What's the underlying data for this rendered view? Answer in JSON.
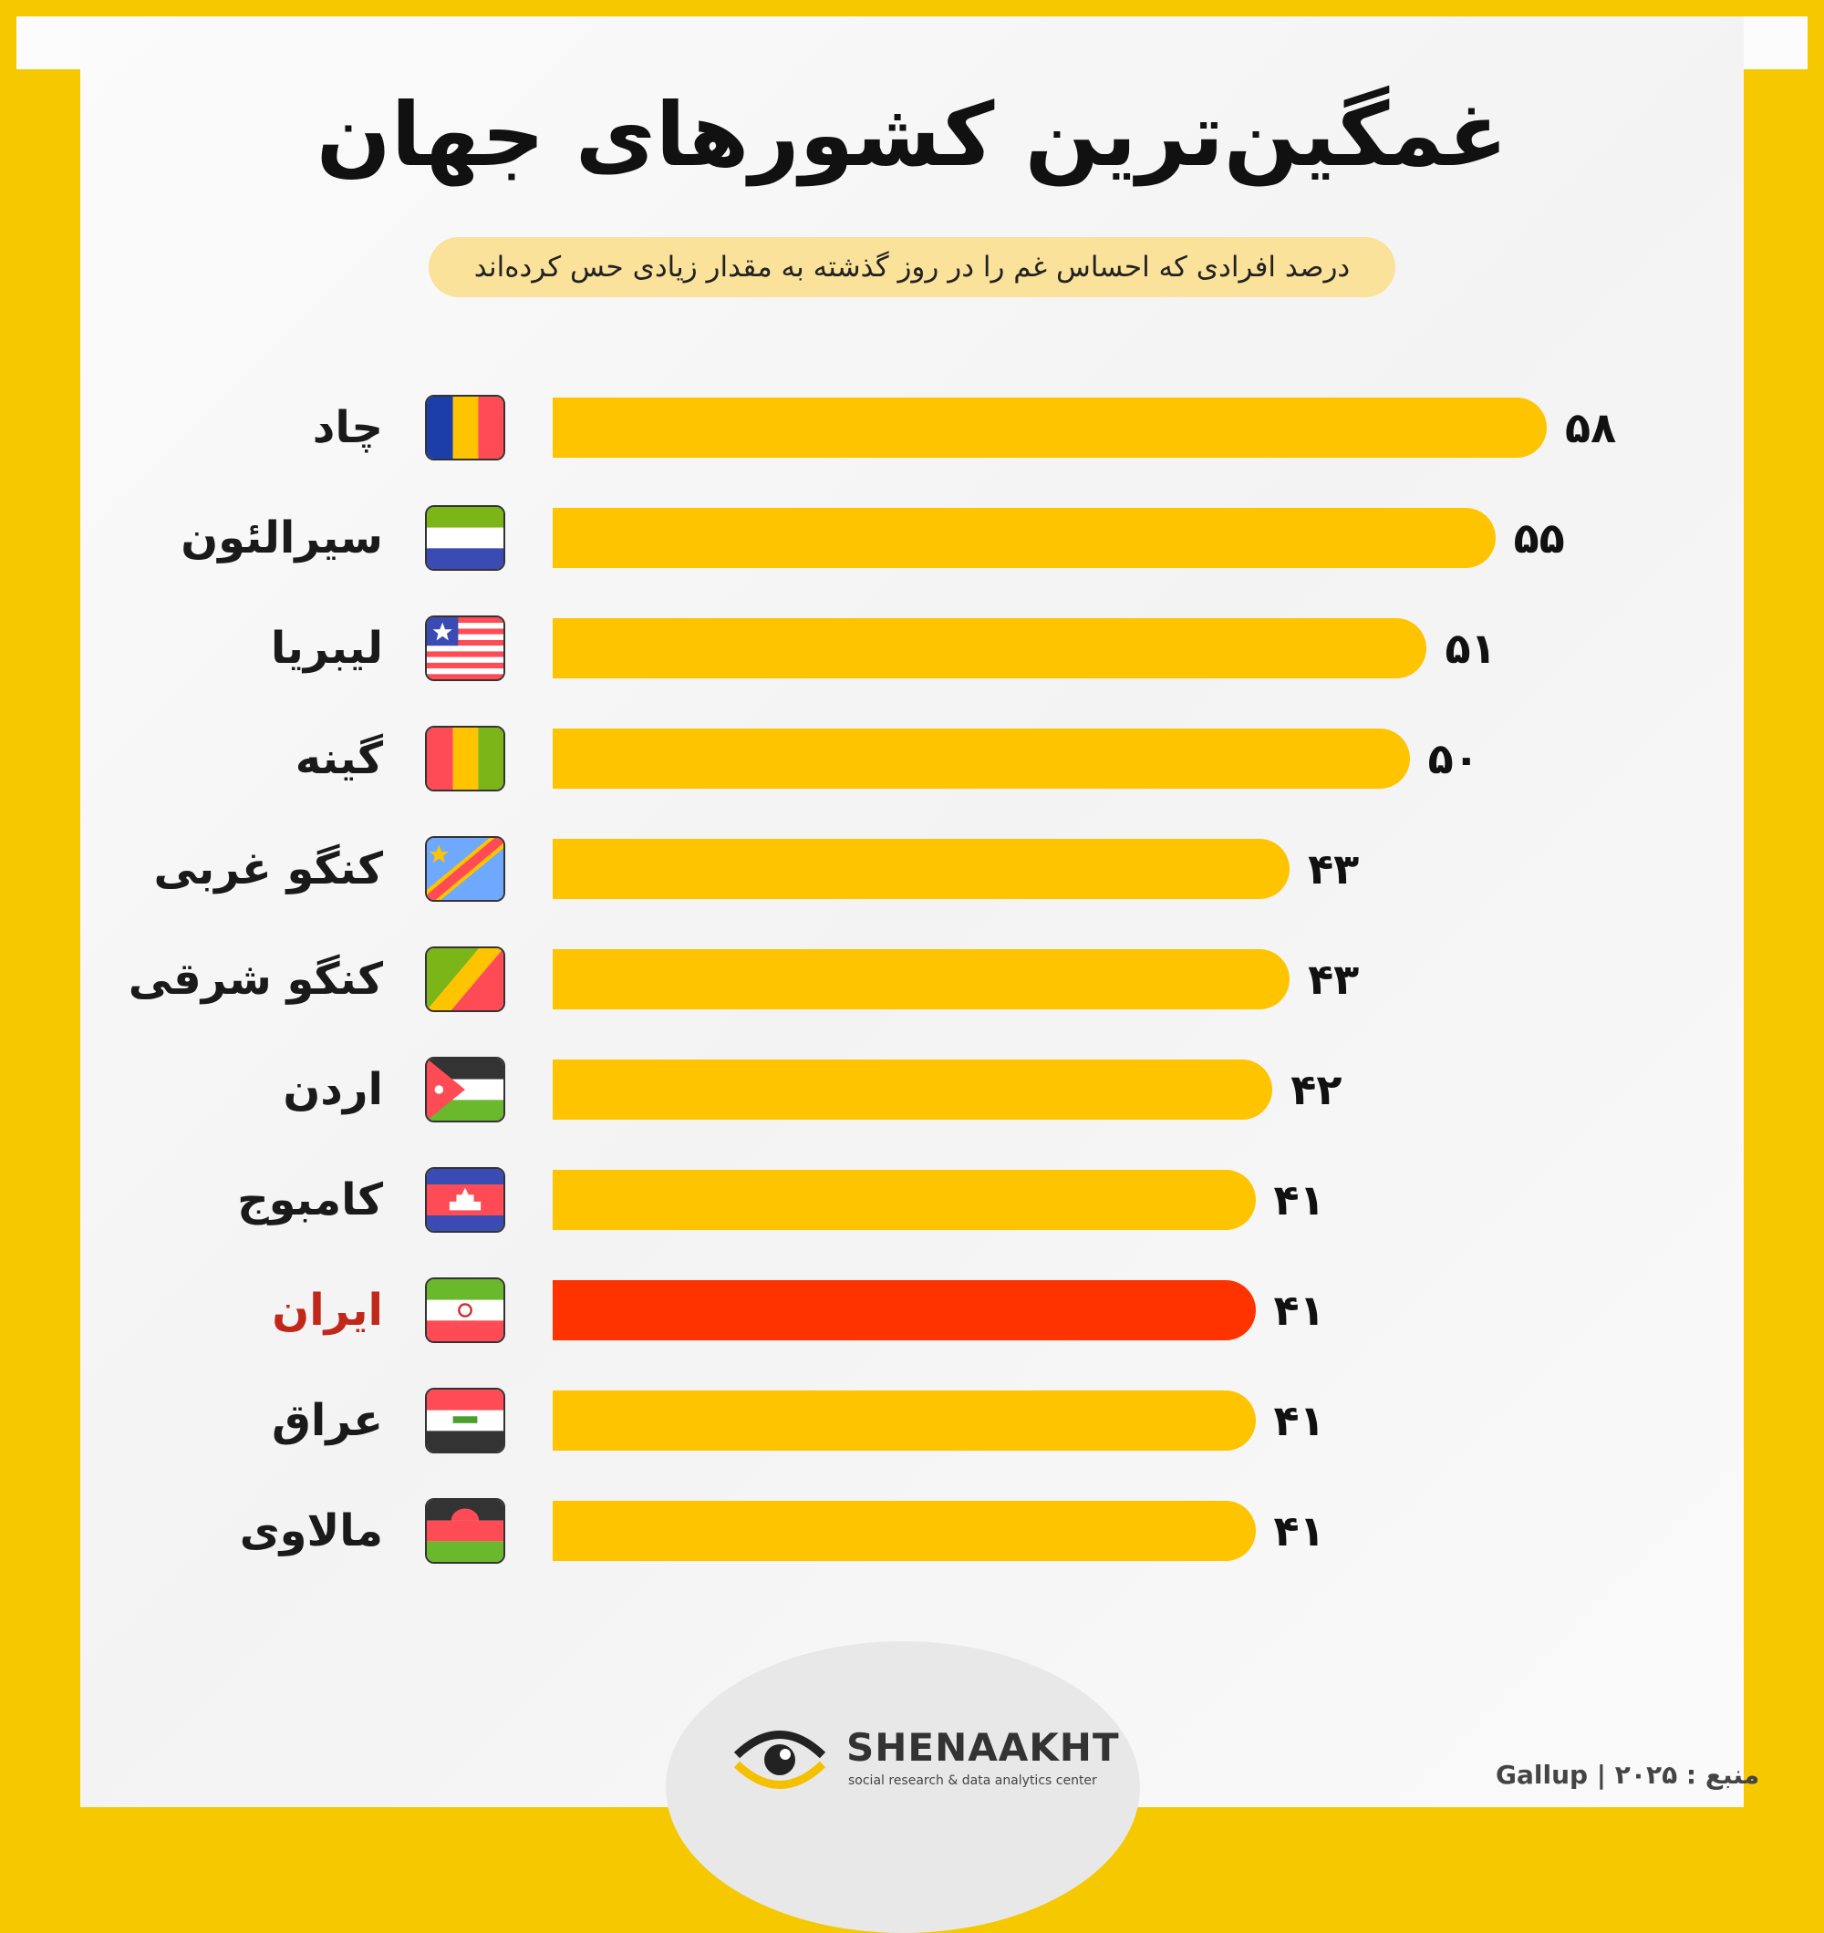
{
  "header": {
    "title": "غمگین‌ترین کشورهای جهان",
    "subtitle": "درصد افرادی که احساس غم را در روز گذشته به مقدار زیادی حس کرده‌اند"
  },
  "chart_data": {
    "type": "bar",
    "orientation": "horizontal",
    "categories": [
      "چاد",
      "سیرالئون",
      "لیبریا",
      "گینه",
      "کنگو غربی",
      "کنگو شرقی",
      "اردن",
      "کامبوج",
      "ایران",
      "عراق",
      "مالاوی"
    ],
    "values": [
      58,
      55,
      51,
      50,
      43,
      43,
      42,
      41,
      41,
      41,
      41
    ],
    "value_labels": [
      "۵۸",
      "۵۵",
      "۵۱",
      "۵۰",
      "۴۳",
      "۴۳",
      "۴۲",
      "۴۱",
      "۴۱",
      "۴۱",
      "۴۱"
    ],
    "highlight_category": "ایران",
    "xlim": [
      0,
      58
    ],
    "grid": false,
    "colors": {
      "bar": "#fec400",
      "highlight": "#ff3300",
      "highlight_label": "#c0281c"
    },
    "flags": [
      "chad-flag",
      "sierra-leone-flag",
      "liberia-flag",
      "guinea-flag",
      "dr-congo-flag",
      "congo-flag",
      "jordan-flag",
      "cambodia-flag",
      "iran-flag",
      "iraq-flag",
      "malawi-flag"
    ]
  },
  "footer": {
    "logo_name": "SHENAAKHT",
    "logo_tagline": "social research & data analytics center",
    "source": "منبع : ۲۰۲۵ | Gallup"
  }
}
